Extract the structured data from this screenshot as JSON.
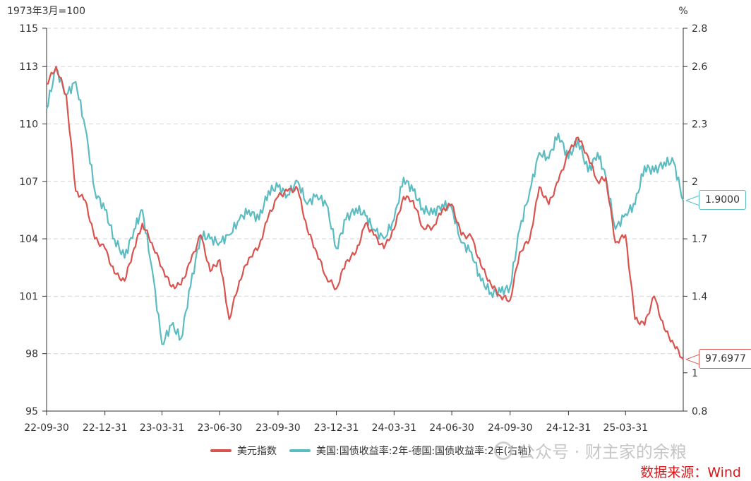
{
  "chart_data": {
    "type": "line",
    "left_unit": "1973年3月=100",
    "right_unit": "%",
    "x_labels": [
      "22-09-30",
      "22-12-31",
      "23-03-31",
      "23-06-30",
      "23-09-30",
      "23-12-31",
      "24-03-31",
      "24-06-30",
      "24-09-30",
      "24-12-31",
      "25-03-31"
    ],
    "left_axis": {
      "min": 95,
      "max": 115,
      "ticks": [
        "95",
        "98",
        "101",
        "104",
        "107",
        "110",
        "113",
        "115"
      ]
    },
    "right_axis": {
      "min": 0.8,
      "max": 2.8,
      "ticks": [
        "0.8",
        "1",
        "1.4",
        "1.7",
        "2",
        "2.3",
        "2.6",
        "2.8"
      ]
    },
    "series": [
      {
        "name": "美元指数",
        "color": "#d9534f",
        "axis": "left",
        "end_label": "97.6977",
        "points": [
          [
            "22-09-30",
            112.1
          ],
          [
            "22-10-15",
            113.0
          ],
          [
            "22-10-31",
            111.5
          ],
          [
            "22-11-15",
            106.5
          ],
          [
            "22-11-30",
            106.0
          ],
          [
            "22-12-15",
            104.0
          ],
          [
            "22-12-31",
            103.5
          ],
          [
            "23-01-15",
            102.2
          ],
          [
            "23-01-31",
            101.8
          ],
          [
            "23-02-15",
            103.5
          ],
          [
            "23-02-28",
            104.8
          ],
          [
            "23-03-15",
            103.8
          ],
          [
            "23-03-31",
            102.5
          ],
          [
            "23-04-15",
            101.5
          ],
          [
            "23-04-30",
            101.6
          ],
          [
            "23-05-15",
            102.8
          ],
          [
            "23-05-31",
            104.2
          ],
          [
            "23-06-15",
            102.3
          ],
          [
            "23-06-30",
            102.9
          ],
          [
            "23-07-15",
            99.8
          ],
          [
            "23-07-31",
            101.8
          ],
          [
            "23-08-15",
            103.0
          ],
          [
            "23-08-31",
            103.6
          ],
          [
            "23-09-15",
            105.2
          ],
          [
            "23-09-30",
            106.2
          ],
          [
            "23-10-15",
            106.5
          ],
          [
            "23-10-31",
            106.6
          ],
          [
            "23-11-15",
            104.5
          ],
          [
            "23-11-30",
            103.3
          ],
          [
            "23-12-15",
            102.0
          ],
          [
            "23-12-31",
            101.4
          ],
          [
            "24-01-15",
            102.8
          ],
          [
            "24-01-31",
            103.3
          ],
          [
            "24-02-15",
            104.8
          ],
          [
            "24-02-28",
            104.2
          ],
          [
            "24-03-15",
            103.5
          ],
          [
            "24-03-31",
            104.5
          ],
          [
            "24-04-15",
            106.2
          ],
          [
            "24-04-30",
            106.0
          ],
          [
            "24-05-15",
            104.6
          ],
          [
            "24-05-31",
            104.6
          ],
          [
            "24-06-15",
            105.5
          ],
          [
            "24-06-30",
            105.8
          ],
          [
            "24-07-15",
            104.2
          ],
          [
            "24-07-31",
            104.1
          ],
          [
            "24-08-15",
            102.6
          ],
          [
            "24-08-31",
            101.6
          ],
          [
            "24-09-15",
            101.0
          ],
          [
            "24-09-30",
            100.8
          ],
          [
            "24-10-15",
            103.3
          ],
          [
            "24-10-31",
            104.0
          ],
          [
            "24-11-15",
            106.7
          ],
          [
            "24-11-30",
            105.8
          ],
          [
            "24-12-15",
            107.0
          ],
          [
            "24-12-31",
            108.5
          ],
          [
            "25-01-15",
            109.3
          ],
          [
            "25-01-31",
            108.3
          ],
          [
            "25-02-15",
            107.0
          ],
          [
            "25-02-28",
            107.2
          ],
          [
            "25-03-15",
            103.8
          ],
          [
            "25-03-31",
            104.2
          ],
          [
            "25-04-15",
            99.8
          ],
          [
            "25-04-30",
            99.5
          ],
          [
            "25-05-15",
            101.0
          ],
          [
            "25-05-31",
            99.3
          ],
          [
            "25-06-15",
            98.5
          ],
          [
            "25-06-30",
            97.7
          ]
        ]
      },
      {
        "name": "美国:国债收益率:2年-德国:国债收益率:2年(右轴)",
        "color": "#5bbcc2",
        "axis": "right",
        "end_label": "1.9000",
        "points": [
          [
            "22-09-30",
            2.38
          ],
          [
            "22-10-15",
            2.59
          ],
          [
            "22-10-31",
            2.45
          ],
          [
            "22-11-15",
            2.52
          ],
          [
            "22-11-30",
            2.28
          ],
          [
            "22-12-15",
            1.95
          ],
          [
            "22-12-31",
            1.85
          ],
          [
            "23-01-15",
            1.7
          ],
          [
            "23-01-31",
            1.6
          ],
          [
            "23-02-15",
            1.75
          ],
          [
            "23-02-28",
            1.85
          ],
          [
            "23-03-15",
            1.55
          ],
          [
            "23-03-31",
            1.15
          ],
          [
            "23-04-15",
            1.25
          ],
          [
            "23-04-30",
            1.18
          ],
          [
            "23-05-15",
            1.45
          ],
          [
            "23-05-31",
            1.72
          ],
          [
            "23-06-15",
            1.7
          ],
          [
            "23-06-30",
            1.68
          ],
          [
            "23-07-15",
            1.72
          ],
          [
            "23-07-31",
            1.8
          ],
          [
            "23-08-15",
            1.85
          ],
          [
            "23-08-31",
            1.8
          ],
          [
            "23-09-15",
            1.95
          ],
          [
            "23-09-30",
            1.97
          ],
          [
            "23-10-15",
            1.93
          ],
          [
            "23-10-31",
            2.0
          ],
          [
            "23-11-15",
            1.88
          ],
          [
            "23-11-30",
            1.93
          ],
          [
            "23-12-15",
            1.88
          ],
          [
            "23-12-31",
            1.65
          ],
          [
            "24-01-15",
            1.8
          ],
          [
            "24-01-31",
            1.86
          ],
          [
            "24-02-15",
            1.82
          ],
          [
            "24-02-28",
            1.75
          ],
          [
            "24-03-15",
            1.7
          ],
          [
            "24-03-31",
            1.8
          ],
          [
            "24-04-15",
            2.02
          ],
          [
            "24-04-30",
            1.95
          ],
          [
            "24-05-15",
            1.86
          ],
          [
            "24-05-31",
            1.83
          ],
          [
            "24-06-15",
            1.88
          ],
          [
            "24-06-30",
            1.86
          ],
          [
            "24-07-15",
            1.68
          ],
          [
            "24-07-31",
            1.63
          ],
          [
            "24-08-15",
            1.48
          ],
          [
            "24-08-31",
            1.42
          ],
          [
            "24-09-15",
            1.42
          ],
          [
            "24-09-30",
            1.45
          ],
          [
            "24-10-15",
            1.75
          ],
          [
            "24-10-31",
            1.95
          ],
          [
            "24-11-15",
            2.15
          ],
          [
            "24-11-30",
            2.12
          ],
          [
            "24-12-15",
            2.25
          ],
          [
            "24-12-31",
            2.12
          ],
          [
            "25-01-15",
            2.22
          ],
          [
            "25-01-31",
            2.05
          ],
          [
            "25-02-15",
            2.15
          ],
          [
            "25-02-28",
            2.02
          ],
          [
            "25-03-15",
            1.75
          ],
          [
            "25-03-31",
            1.83
          ],
          [
            "25-04-15",
            1.88
          ],
          [
            "25-04-30",
            2.08
          ],
          [
            "25-05-15",
            2.05
          ],
          [
            "25-05-31",
            2.1
          ],
          [
            "25-06-15",
            2.1
          ],
          [
            "25-06-30",
            1.9
          ]
        ]
      }
    ],
    "grid": "horizontal-dashed",
    "legend_position": "bottom-center"
  },
  "source_text": "数据来源：Wind",
  "watermark_text": "公众号 · 财主家的余粮"
}
